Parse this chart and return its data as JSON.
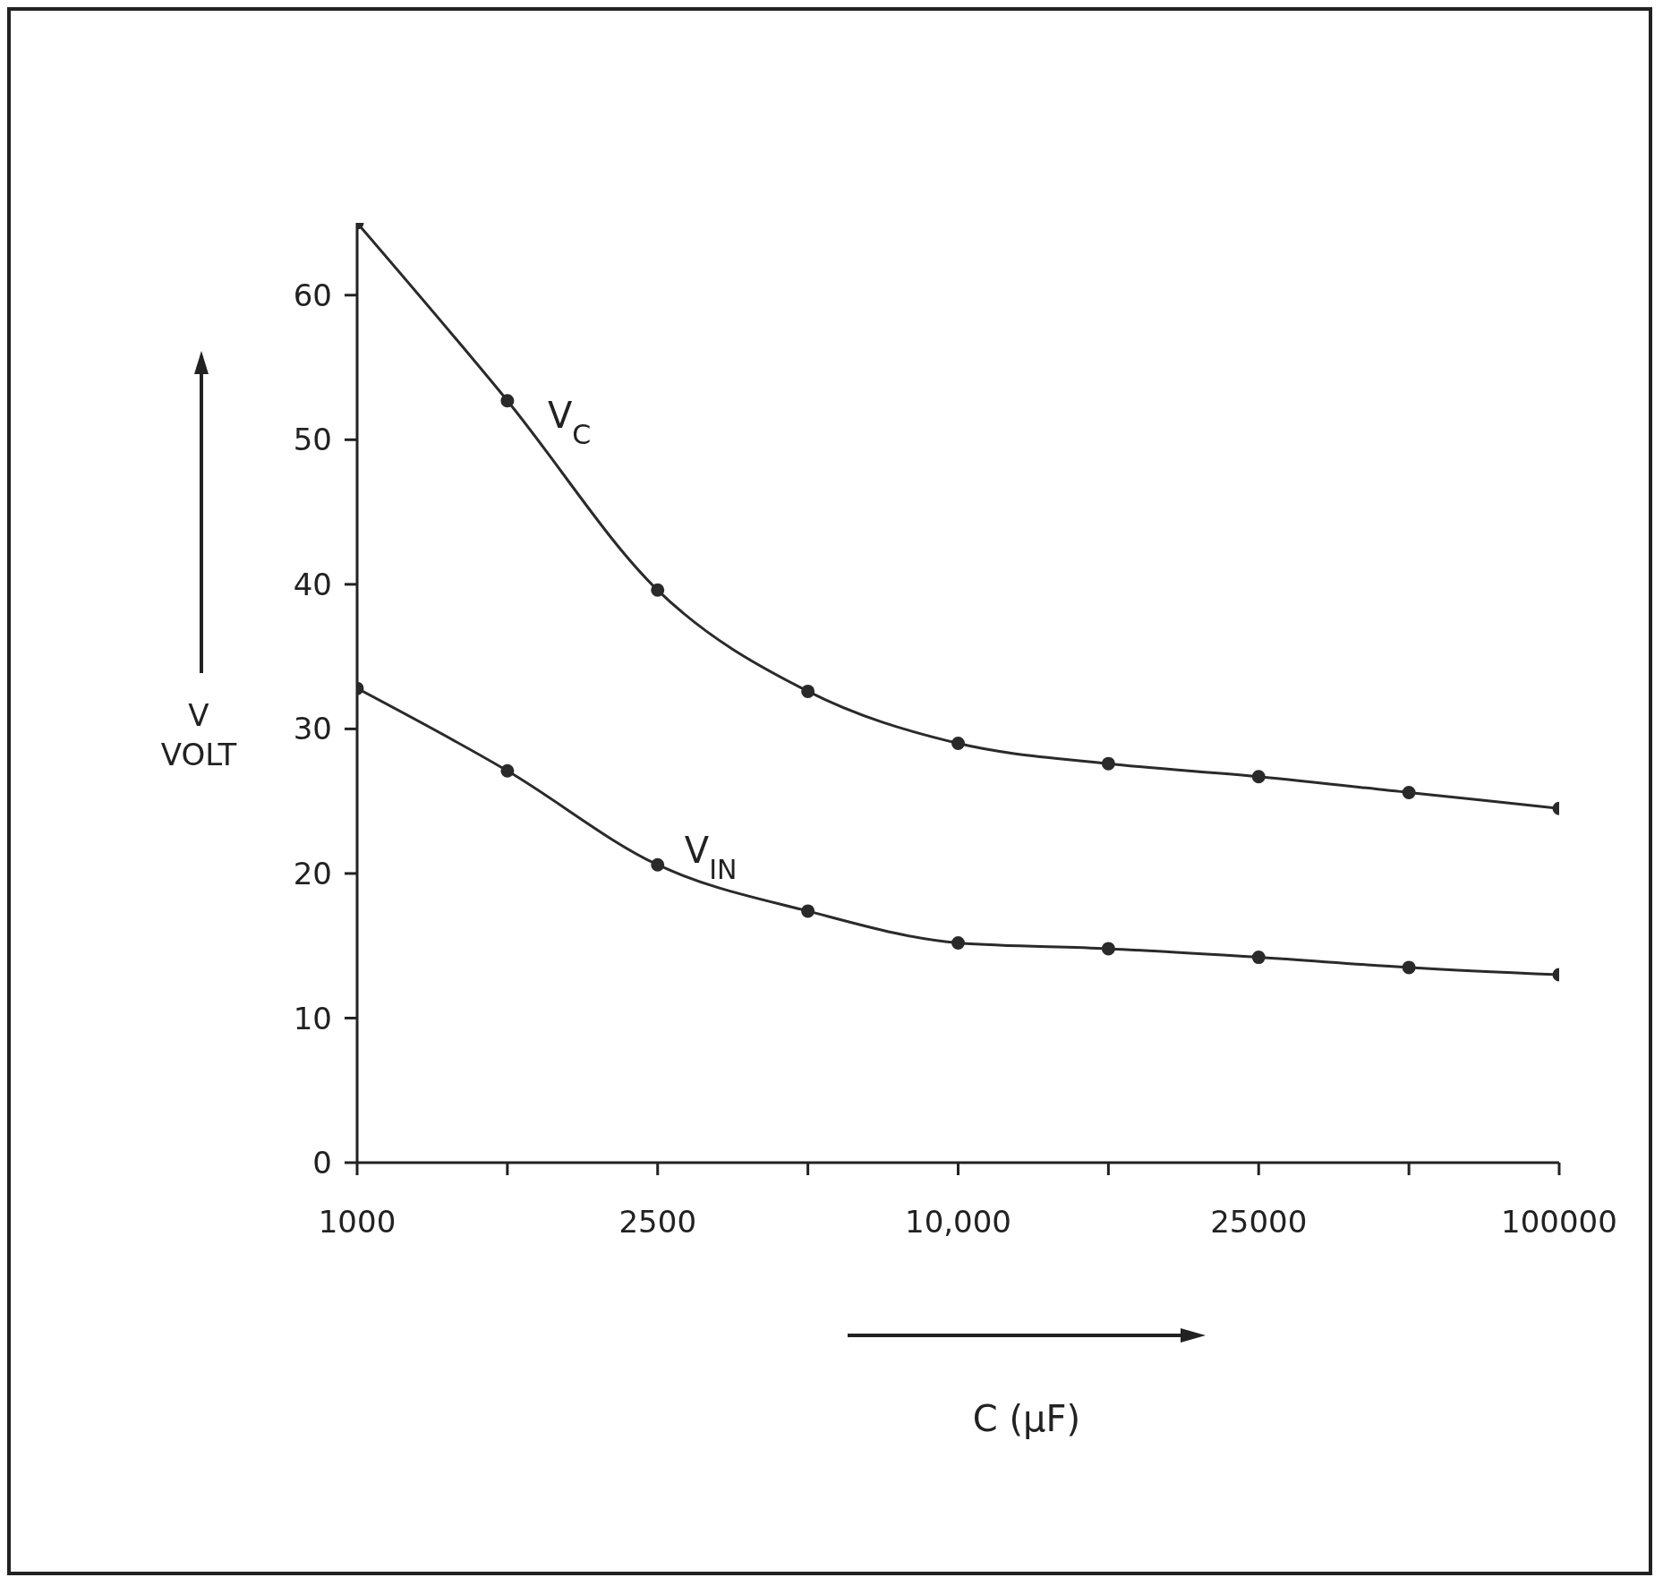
{
  "chart_data": {
    "type": "line",
    "xlabel": "C (μF)",
    "ylabel": "V\nVOLT",
    "categories": [
      "1000",
      null,
      "2500",
      null,
      "10,000",
      null,
      "25000",
      null,
      "100000"
    ],
    "series": [
      {
        "name": "V$_{C}$",
        "color": "#2a2a2a",
        "values": [
          65.0,
          52.7,
          39.6,
          32.6,
          29.0,
          27.6,
          26.7,
          25.6,
          24.5
        ]
      },
      {
        "name": "V$_{IN}$",
        "color": "#2a2a2a",
        "values": [
          32.8,
          27.1,
          20.6,
          17.4,
          15.2,
          14.8,
          14.2,
          13.5,
          13.0
        ]
      }
    ],
    "ylim": [
      0,
      65
    ],
    "yticks": [
      0,
      10,
      20,
      30,
      40,
      50,
      60
    ],
    "grid": false,
    "marker": "circle",
    "line_style": "solid"
  }
}
